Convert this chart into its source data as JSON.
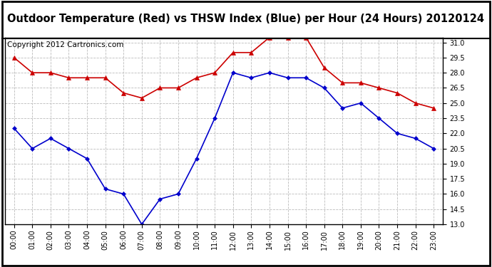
{
  "title": "Outdoor Temperature (Red) vs THSW Index (Blue) per Hour (24 Hours) 20120124",
  "copyright": "Copyright 2012 Cartronics.com",
  "hours": [
    "00:00",
    "01:00",
    "02:00",
    "03:00",
    "04:00",
    "05:00",
    "06:00",
    "07:00",
    "08:00",
    "09:00",
    "10:00",
    "11:00",
    "12:00",
    "13:00",
    "14:00",
    "15:00",
    "16:00",
    "17:00",
    "18:00",
    "19:00",
    "20:00",
    "21:00",
    "22:00",
    "23:00"
  ],
  "red_data": [
    29.5,
    28.0,
    28.0,
    27.5,
    27.5,
    27.5,
    26.0,
    25.5,
    26.5,
    26.5,
    27.5,
    28.0,
    30.0,
    30.0,
    31.5,
    31.5,
    31.5,
    28.5,
    27.0,
    27.0,
    26.5,
    26.0,
    25.0,
    24.5
  ],
  "blue_data": [
    22.5,
    20.5,
    21.5,
    20.5,
    19.5,
    16.5,
    16.0,
    13.0,
    15.5,
    16.0,
    19.5,
    23.5,
    28.0,
    27.5,
    28.0,
    27.5,
    27.5,
    26.5,
    24.5,
    25.0,
    23.5,
    22.0,
    21.5,
    20.5
  ],
  "ylim": [
    13.0,
    31.5
  ],
  "yticks": [
    13.0,
    14.5,
    16.0,
    17.5,
    19.0,
    20.5,
    22.0,
    23.5,
    25.0,
    26.5,
    28.0,
    29.5,
    31.0
  ],
  "red_color": "#cc0000",
  "blue_color": "#0000cc",
  "bg_color": "#ffffff",
  "grid_color": "#bbbbbb",
  "title_fontsize": 10.5,
  "copyright_fontsize": 7.5
}
